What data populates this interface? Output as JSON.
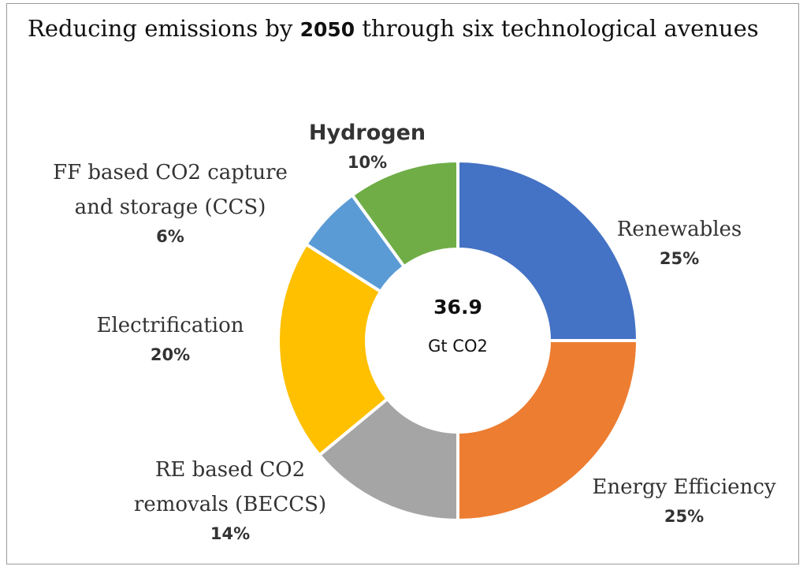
{
  "title": {
    "prefix": "Reducing emissions by ",
    "year": "2050",
    "suffix": " through six technological avenues"
  },
  "center": {
    "total": "36.9",
    "unit": "Gt CO2"
  },
  "chart_data": {
    "type": "pie",
    "title": "Reducing emissions by 2050 through six technological avenues",
    "total": 36.9,
    "unit": "Gt CO2",
    "slices": [
      {
        "label_lines": [
          "Renewables"
        ],
        "pct_label": "25%",
        "value": 25,
        "color": "#4472C4"
      },
      {
        "label_lines": [
          "Energy Efficiency"
        ],
        "pct_label": "25%",
        "value": 25,
        "color": "#ED7D31"
      },
      {
        "label_lines": [
          "RE based CO2",
          "removals (BECCS)"
        ],
        "pct_label": "14%",
        "value": 14,
        "color": "#A5A5A5"
      },
      {
        "label_lines": [
          "Electrification"
        ],
        "pct_label": "20%",
        "value": 20,
        "color": "#FFC000"
      },
      {
        "label_lines": [
          "FF based CO2 capture",
          "and storage (CCS)"
        ],
        "pct_label": "6%",
        "value": 6,
        "color": "#5B9BD5"
      },
      {
        "label_lines": [
          "Hydrogen"
        ],
        "pct_label": "10%",
        "value": 10,
        "color": "#70AD47"
      }
    ]
  }
}
